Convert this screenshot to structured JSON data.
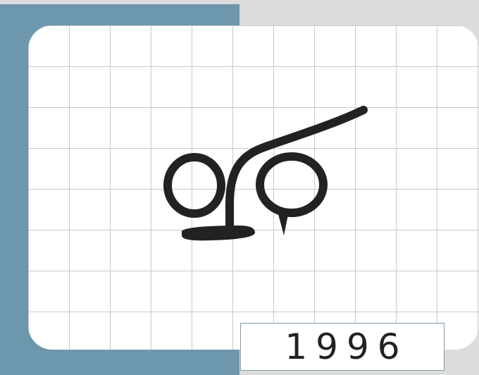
{
  "year_label": "1996",
  "colors": {
    "background": "#dcdcdc",
    "accent_block": "#6d97ad",
    "card": "#ffffff",
    "grid_line": "#c9c9c9",
    "logo_ink": "#222222"
  },
  "logo": {
    "icon": "calligraphy-glyph-icon"
  }
}
